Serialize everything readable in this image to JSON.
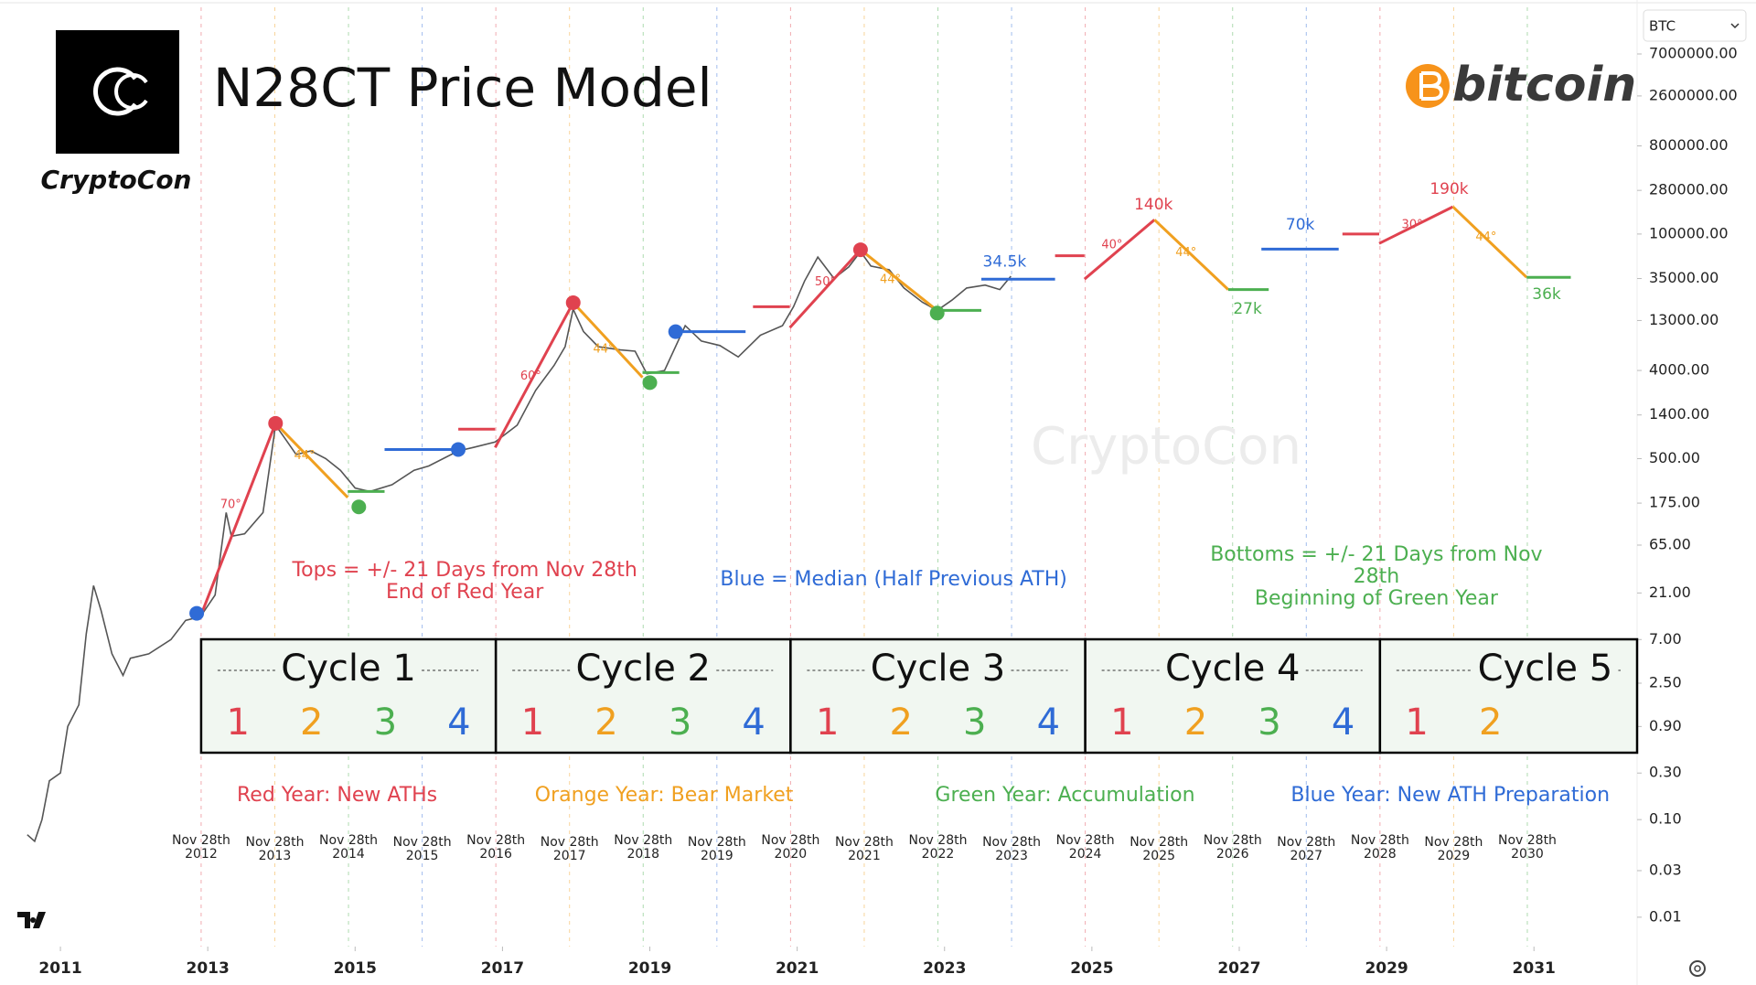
{
  "chart_data": {
    "type": "line",
    "title": "N28CT Price Model",
    "brand": "CryptoCon",
    "coin_logo": "bitcoin",
    "symbol": "BTC",
    "watermark": "CryptoCon",
    "log_scale": true,
    "color": "#555555",
    "xlim": [
      2010.18,
      2032.4
    ],
    "ylim": [
      0.005,
      25000000
    ],
    "xticks": [
      2011,
      2013,
      2015,
      2017,
      2019,
      2021,
      2023,
      2025,
      2027,
      2029,
      2031
    ],
    "yticks": [
      {
        "value": 7000000,
        "label": "7000000.00"
      },
      {
        "value": 2600000,
        "label": "2600000.00"
      },
      {
        "value": 800000,
        "label": "800000.00"
      },
      {
        "value": 280000,
        "label": "280000.00"
      },
      {
        "value": 100000,
        "label": "100000.00"
      },
      {
        "value": 35000,
        "label": "35000.00"
      },
      {
        "value": 13000,
        "label": "13000.00"
      },
      {
        "value": 4000,
        "label": "4000.00"
      },
      {
        "value": 1400,
        "label": "1400.00"
      },
      {
        "value": 500,
        "label": "500.00"
      },
      {
        "value": 175,
        "label": "175.00"
      },
      {
        "value": 65,
        "label": "65.00"
      },
      {
        "value": 21,
        "label": "21.00"
      },
      {
        "value": 7,
        "label": "7.00"
      },
      {
        "value": 2.5,
        "label": "2.50"
      },
      {
        "value": 0.9,
        "label": "0.90"
      },
      {
        "value": 0.3,
        "label": "0.30"
      },
      {
        "value": 0.1,
        "label": "0.10"
      },
      {
        "value": 0.03,
        "label": "0.03"
      },
      {
        "value": 0.01,
        "label": "0.01"
      }
    ],
    "x": [
      2010.55,
      2010.65,
      2010.75,
      2010.85,
      2011.0,
      2011.1,
      2011.25,
      2011.35,
      2011.45,
      2011.55,
      2011.7,
      2011.85,
      2011.95,
      2012.2,
      2012.5,
      2012.7,
      2012.9,
      2013.1,
      2013.25,
      2013.32,
      2013.5,
      2013.75,
      2013.92,
      2014.05,
      2014.2,
      2014.4,
      2014.6,
      2014.8,
      2015.0,
      2015.2,
      2015.5,
      2015.8,
      2016.0,
      2016.4,
      2016.6,
      2016.9,
      2017.2,
      2017.45,
      2017.7,
      2017.85,
      2017.96,
      2018.1,
      2018.3,
      2018.6,
      2018.8,
      2018.96,
      2019.2,
      2019.48,
      2019.7,
      2019.95,
      2020.2,
      2020.5,
      2020.8,
      2020.95,
      2021.1,
      2021.28,
      2021.5,
      2021.7,
      2021.86,
      2022.0,
      2022.25,
      2022.45,
      2022.7,
      2022.9,
      2023.1,
      2023.3,
      2023.55,
      2023.75,
      2023.9
    ],
    "values": [
      0.07,
      0.06,
      0.1,
      0.25,
      0.3,
      0.9,
      1.5,
      8,
      25,
      14,
      5,
      3,
      4.5,
      5,
      7,
      11,
      12,
      20,
      140,
      80,
      85,
      140,
      1100,
      800,
      550,
      600,
      500,
      380,
      250,
      230,
      270,
      380,
      420,
      600,
      650,
      740,
      1100,
      2500,
      4500,
      7000,
      17000,
      10000,
      7000,
      6500,
      6300,
      3700,
      4000,
      11500,
      8000,
      7200,
      5500,
      9200,
      11500,
      18000,
      33000,
      58000,
      35000,
      46000,
      66000,
      47000,
      43000,
      28000,
      20000,
      16500,
      21000,
      28000,
      30000,
      27000,
      37000
    ],
    "phase_colors": [
      "#e0424f",
      "#f0a020",
      "#4caf50",
      "#2f6bd6"
    ],
    "nov28_lines": [
      {
        "value": 2012.91,
        "label": "Nov 28th\n2012"
      },
      {
        "value": 2013.91,
        "label": "Nov 28th\n2013"
      },
      {
        "value": 2014.91,
        "label": "Nov 28th\n2014"
      },
      {
        "value": 2015.91,
        "label": "Nov 28th\n2015"
      },
      {
        "value": 2016.91,
        "label": "Nov 28th\n2016"
      },
      {
        "value": 2017.91,
        "label": "Nov 28th\n2017"
      },
      {
        "value": 2018.91,
        "label": "Nov 28th\n2018"
      },
      {
        "value": 2019.91,
        "label": "Nov 28th\n2019"
      },
      {
        "value": 2020.91,
        "label": "Nov 28th\n2020"
      },
      {
        "value": 2021.91,
        "label": "Nov 28th\n2021"
      },
      {
        "value": 2022.91,
        "label": "Nov 28th\n2022"
      },
      {
        "value": 2023.91,
        "label": "Nov 28th\n2023"
      },
      {
        "value": 2024.91,
        "label": "Nov 28th\n2024"
      },
      {
        "value": 2025.91,
        "label": "Nov 28th\n2025"
      },
      {
        "value": 2026.91,
        "label": "Nov 28th\n2026"
      },
      {
        "value": 2027.91,
        "label": "Nov 28th\n2027"
      },
      {
        "value": 2028.91,
        "label": "Nov 28th\n2028"
      },
      {
        "value": 2029.91,
        "label": "Nov 28th\n2029"
      },
      {
        "value": 2030.91,
        "label": "Nov 28th\n2030"
      }
    ],
    "segments": [
      {
        "color": "#e0424f",
        "x": [
          2012.9,
          2013.92
        ],
        "values": [
          12,
          1150
        ]
      },
      {
        "color": "#f0a020",
        "x": [
          2013.92,
          2014.9
        ],
        "values": [
          1150,
          200
        ]
      },
      {
        "color": "#4caf50",
        "x": [
          2014.9,
          2015.4
        ],
        "values": [
          230,
          230
        ]
      },
      {
        "color": "#2f6bd6",
        "x": [
          2015.4,
          2016.4
        ],
        "values": [
          620,
          620
        ]
      },
      {
        "color": "#e0424f",
        "x": [
          2016.4,
          2016.9
        ],
        "values": [
          1000,
          1000
        ]
      },
      {
        "color": "#e0424f",
        "x": [
          2016.9,
          2017.96
        ],
        "values": [
          650,
          19800
        ]
      },
      {
        "color": "#f0a020",
        "x": [
          2017.96,
          2018.9
        ],
        "values": [
          19800,
          3400
        ]
      },
      {
        "color": "#4caf50",
        "x": [
          2018.9,
          2019.4
        ],
        "values": [
          3800,
          3800
        ]
      },
      {
        "color": "#2f6bd6",
        "x": [
          2019.35,
          2020.3
        ],
        "values": [
          10000,
          10000
        ]
      },
      {
        "color": "#e0424f",
        "x": [
          2020.4,
          2020.9
        ],
        "values": [
          18000,
          18000
        ]
      },
      {
        "color": "#e0424f",
        "x": [
          2020.9,
          2021.86
        ],
        "values": [
          11000,
          69000
        ]
      },
      {
        "color": "#f0a020",
        "x": [
          2021.86,
          2022.9
        ],
        "values": [
          69000,
          16500
        ]
      },
      {
        "color": "#4caf50",
        "x": [
          2022.9,
          2023.5
        ],
        "values": [
          16500,
          16500
        ]
      },
      {
        "color": "#2f6bd6",
        "x": [
          2023.5,
          2024.5
        ],
        "values": [
          34500,
          34500
        ]
      },
      {
        "color": "#e0424f",
        "x": [
          2024.5,
          2024.9
        ],
        "values": [
          60000,
          60000
        ]
      },
      {
        "color": "#e0424f",
        "x": [
          2024.9,
          2025.85
        ],
        "values": [
          34500,
          140000
        ]
      },
      {
        "color": "#f0a020",
        "x": [
          2025.85,
          2026.85
        ],
        "values": [
          140000,
          27000
        ]
      },
      {
        "color": "#4caf50",
        "x": [
          2026.85,
          2027.4
        ],
        "values": [
          27000,
          27000
        ]
      },
      {
        "color": "#2f6bd6",
        "x": [
          2027.3,
          2028.35
        ],
        "values": [
          70000,
          70000
        ]
      },
      {
        "color": "#e0424f",
        "x": [
          2028.4,
          2028.9
        ],
        "values": [
          100000,
          100000
        ]
      },
      {
        "color": "#e0424f",
        "x": [
          2028.9,
          2029.9
        ],
        "values": [
          80000,
          190000
        ]
      },
      {
        "color": "#f0a020",
        "x": [
          2029.9,
          2030.9
        ],
        "values": [
          190000,
          36000
        ]
      },
      {
        "color": "#4caf50",
        "x": [
          2030.9,
          2031.5
        ],
        "values": [
          36000,
          36000
        ]
      }
    ],
    "points": [
      {
        "x": 2013.92,
        "value": 1150,
        "color": "#e0424f"
      },
      {
        "x": 2017.96,
        "value": 19800,
        "color": "#e0424f"
      },
      {
        "x": 2021.86,
        "value": 69000,
        "color": "#e0424f"
      },
      {
        "x": 2015.05,
        "value": 160,
        "color": "#4caf50"
      },
      {
        "x": 2019.0,
        "value": 3000,
        "color": "#4caf50"
      },
      {
        "x": 2022.9,
        "value": 15500,
        "color": "#4caf50"
      },
      {
        "x": 2012.85,
        "value": 13,
        "color": "#2f6bd6"
      },
      {
        "x": 2016.4,
        "value": 620,
        "color": "#2f6bd6"
      },
      {
        "x": 2019.35,
        "value": 10000,
        "color": "#2f6bd6"
      }
    ],
    "annotations": [
      {
        "text": "70°",
        "color": "#e0424f"
      },
      {
        "text": "44°",
        "color": "#f0a020"
      },
      {
        "text": "60°",
        "color": "#e0424f"
      },
      {
        "text": "44°",
        "color": "#f0a020"
      },
      {
        "text": "50°",
        "color": "#e0424f"
      },
      {
        "text": "44°",
        "color": "#f0a020"
      },
      {
        "text": "40°",
        "color": "#e0424f"
      },
      {
        "text": "44°",
        "color": "#f0a020"
      },
      {
        "text": "30°",
        "color": "#e0424f"
      },
      {
        "text": "44°",
        "color": "#f0a020"
      },
      {
        "text": "34.5k",
        "color": "#2f6bd6"
      },
      {
        "text": "140k",
        "color": "#e0424f"
      },
      {
        "text": "27k",
        "color": "#4caf50"
      },
      {
        "text": "70k",
        "color": "#2f6bd6"
      },
      {
        "text": "190k",
        "color": "#e0424f"
      },
      {
        "text": "36k",
        "color": "#4caf50"
      }
    ],
    "notes": [
      {
        "text": "Tops = +/- 21 Days from Nov 28th\nEnd of Red Year",
        "color": "#e0424f"
      },
      {
        "text": "Blue = Median (Half Previous ATH)",
        "color": "#2f6bd6"
      },
      {
        "text": "Bottoms = +/- 21 Days from Nov 28th\nBeginning of Green Year",
        "color": "#4caf50"
      }
    ],
    "cycles": [
      {
        "label": "Cycle 1",
        "years": [
          1,
          2,
          3,
          4
        ]
      },
      {
        "label": "Cycle 2",
        "years": [
          1,
          2,
          3,
          4
        ]
      },
      {
        "label": "Cycle 3",
        "years": [
          1,
          2,
          3,
          4
        ]
      },
      {
        "label": "Cycle 4",
        "years": [
          1,
          2,
          3,
          4
        ]
      },
      {
        "label": "Cycle 5",
        "years": [
          1,
          2
        ]
      }
    ],
    "year_legend": [
      "Red Year: New ATHs",
      "Orange Year: Bear Market",
      "Green Year: Accumulation",
      "Blue Year: New ATH Preparation"
    ]
  }
}
